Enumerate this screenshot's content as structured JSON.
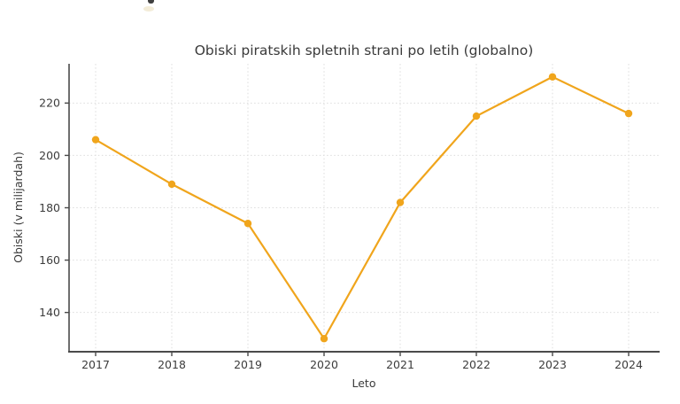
{
  "chart_data": {
    "type": "line",
    "title": "Obiski piratskih spletnih strani po letih (globalno)",
    "xlabel": "Leto",
    "ylabel": "Obiski (v milijardah)",
    "categories": [
      "2017",
      "2018",
      "2019",
      "2020",
      "2021",
      "2022",
      "2023",
      "2024"
    ],
    "series": [
      {
        "name": "Obiski",
        "values": [
          206,
          189,
          174,
          130,
          182,
          215,
          230,
          216
        ]
      }
    ],
    "yticks": [
      140,
      160,
      180,
      200,
      220
    ],
    "ylim": [
      125,
      235
    ],
    "grid": true,
    "grid_style": "dotted",
    "legend_position": "none",
    "line_color": "#F0A51C",
    "marker": "circle",
    "marker_color": "#F0A51C"
  },
  "colors": {
    "background": "#ffffff",
    "text": "#3a3a3a",
    "axis": "#4a4a4a",
    "grid": "#dcdcdc"
  }
}
